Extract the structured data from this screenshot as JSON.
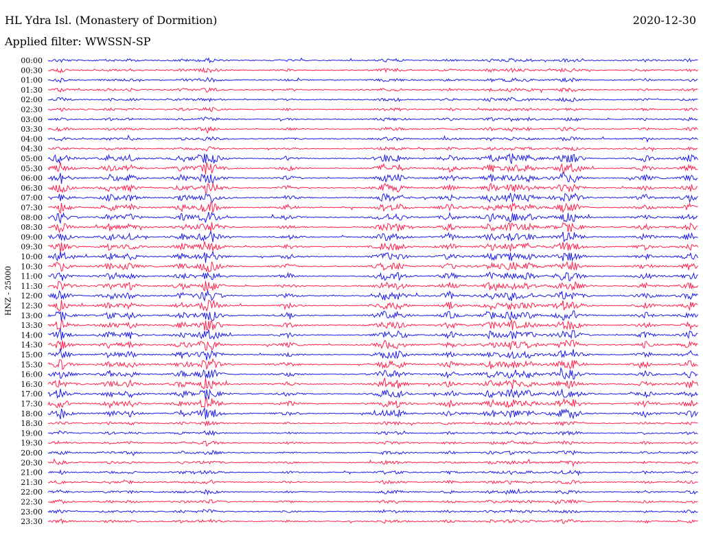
{
  "header": {
    "title": "HL Ydra Isl. (Monastery of Dormition)",
    "date": "2020-12-30",
    "filter": "Applied filter: WWSSN-SP"
  },
  "chart_data": {
    "type": "line",
    "title": "HL Ydra Isl. (Monastery of Dormition)",
    "ylabel": "HNZ - 25000",
    "row_labels": [
      "00:00",
      "00:30",
      "01:00",
      "01:30",
      "02:00",
      "02:30",
      "03:00",
      "03:30",
      "04:00",
      "04:30",
      "05:00",
      "05:30",
      "06:00",
      "06:30",
      "07:00",
      "07:30",
      "08:00",
      "08:30",
      "09:00",
      "09:30",
      "10:00",
      "10:30",
      "11:00",
      "11:30",
      "12:00",
      "12:30",
      "13:00",
      "13:30",
      "14:00",
      "14:30",
      "15:00",
      "15:30",
      "16:00",
      "16:30",
      "17:00",
      "17:30",
      "18:00",
      "18:30",
      "19:00",
      "19:30",
      "20:00",
      "20:30",
      "21:00",
      "21:30",
      "22:00",
      "22:30",
      "23:00",
      "23:30"
    ],
    "row_colors": [
      "#1a1ae6",
      "#ff1f4a"
    ],
    "grid": false,
    "legend": "none"
  }
}
